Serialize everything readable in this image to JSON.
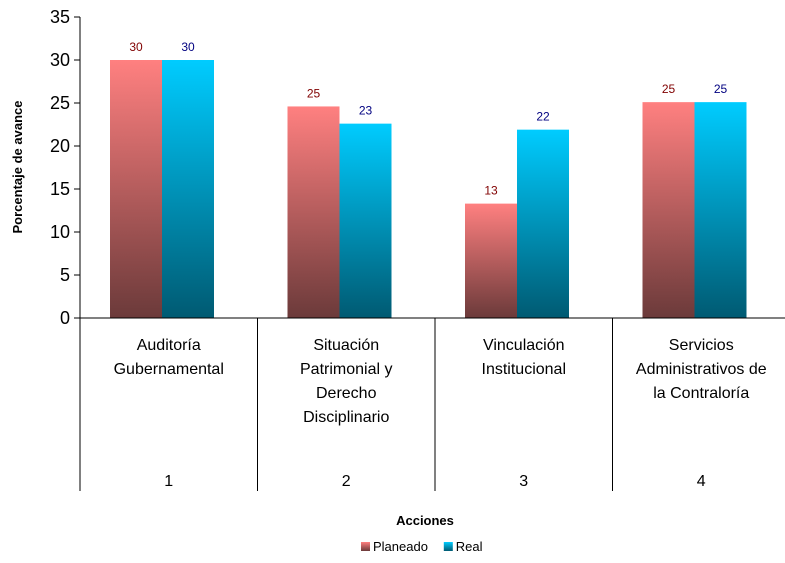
{
  "chart_data": {
    "type": "bar",
    "title": "",
    "xlabel": "Acciones",
    "ylabel": "Porcentaje de avance",
    "ylim": [
      0,
      35
    ],
    "yticks": [
      0,
      5,
      10,
      15,
      20,
      25,
      30,
      35
    ],
    "grid": false,
    "legend_position": "bottom",
    "categories": [
      {
        "number": "1",
        "lines": [
          "Auditoría",
          "Gubernamental"
        ]
      },
      {
        "number": "2",
        "lines": [
          "Situación",
          "Patrimonial y",
          "Derecho",
          "Disciplinario"
        ]
      },
      {
        "number": "3",
        "lines": [
          "Vinculación",
          "Institucional"
        ]
      },
      {
        "number": "4",
        "lines": [
          "Servicios",
          "Administrativos de",
          "la Contraloría"
        ]
      }
    ],
    "series": [
      {
        "name": "Planeado",
        "values": [
          30,
          24.6,
          13.3,
          25.1
        ],
        "labels": [
          "30",
          "25",
          "13",
          "25"
        ],
        "color_top": "#ff8080",
        "color_bottom": "#6b3a3a",
        "label_color": "#800000"
      },
      {
        "name": "Real",
        "values": [
          30,
          22.6,
          21.9,
          25.1
        ],
        "labels": [
          "30",
          "23",
          "22",
          "25"
        ],
        "color_top": "#00ccff",
        "color_bottom": "#005a72",
        "label_color": "#000080"
      }
    ]
  }
}
